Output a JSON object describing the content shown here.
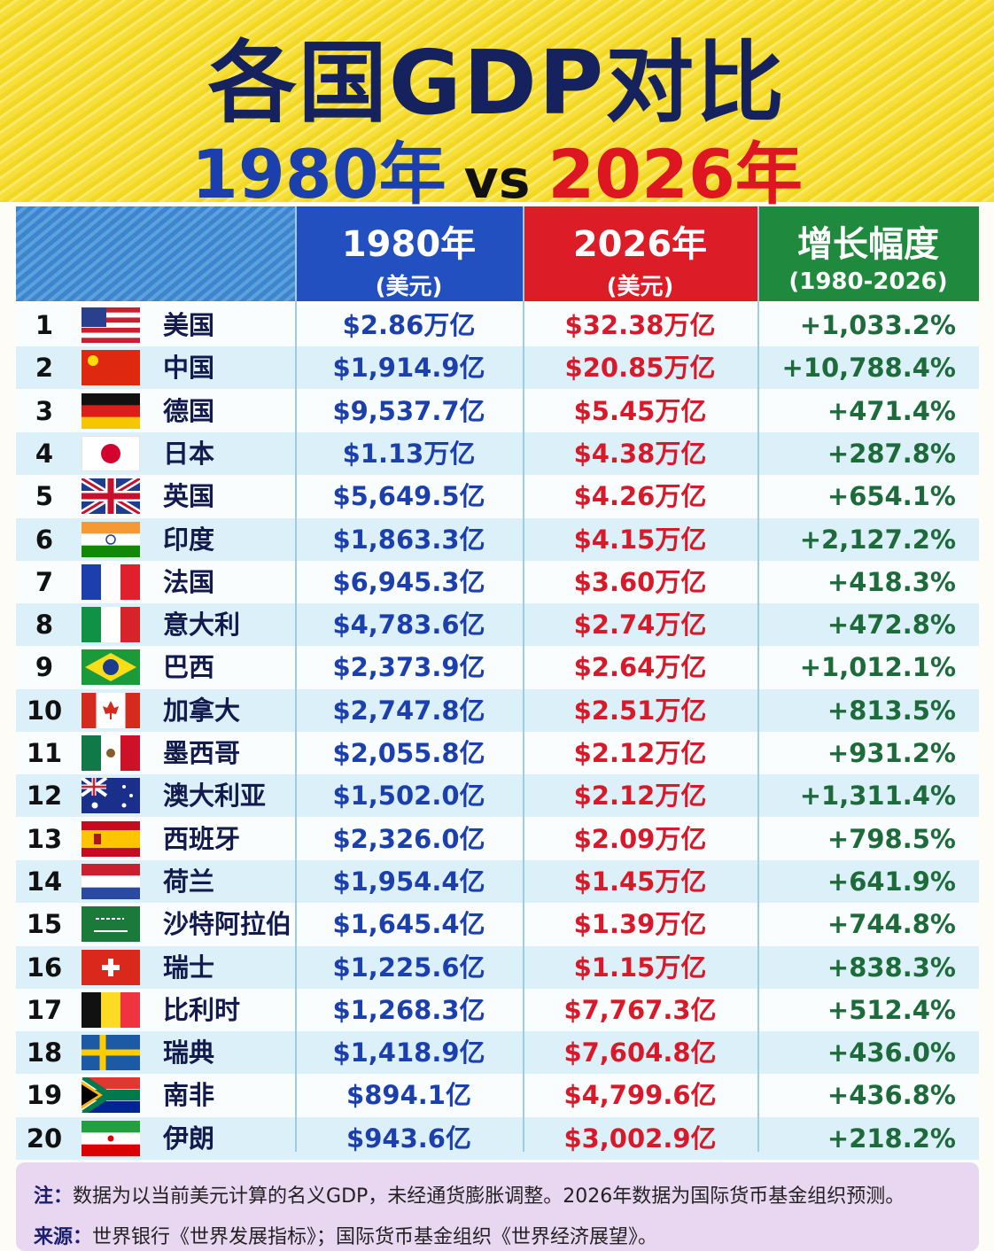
{
  "header": {
    "title": "各国GDP对比",
    "subtitle": [
      "1980年",
      "vs",
      "2026年"
    ]
  },
  "table": {
    "columns": [
      {
        "title": "1980年",
        "unit": "(美元)"
      },
      {
        "title": "2026年",
        "unit": "(美元)"
      },
      {
        "title": "增长幅度",
        "unit": "(1980-2026)"
      }
    ],
    "rows": [
      [
        1,
        "美国",
        "$2.86万亿",
        "$32.38万亿",
        "+1,033.2%"
      ],
      [
        2,
        "中国",
        "$1,914.9亿",
        "$20.85万亿",
        "+10,788.4%"
      ],
      [
        3,
        "德国",
        "$9,537.7亿",
        "$5.45万亿",
        "+471.4%"
      ],
      [
        4,
        "日本",
        "$1.13万亿",
        "$4.38万亿",
        "+287.8%"
      ],
      [
        5,
        "英国",
        "$5,649.5亿",
        "$4.26万亿",
        "+654.1%"
      ],
      [
        6,
        "印度",
        "$1,863.3亿",
        "$4.15万亿",
        "+2,127.2%"
      ],
      [
        7,
        "法国",
        "$6,945.3亿",
        "$3.60万亿",
        "+418.3%"
      ],
      [
        8,
        "意大利",
        "$4,783.6亿",
        "$2.74万亿",
        "+472.8%"
      ],
      [
        9,
        "巴西",
        "$2,373.9亿",
        "$2.64万亿",
        "+1,012.1%"
      ],
      [
        10,
        "加拿大",
        "$2,747.8亿",
        "$2.51万亿",
        "+813.5%"
      ],
      [
        11,
        "墨西哥",
        "$2,055.8亿",
        "$2.12万亿",
        "+931.2%"
      ],
      [
        12,
        "澳大利亚",
        "$1,502.0亿",
        "$2.12万亿",
        "+1,311.4%"
      ],
      [
        13,
        "西班牙",
        "$2,326.0亿",
        "$2.09万亿",
        "+798.5%"
      ],
      [
        14,
        "荷兰",
        "$1,954.4亿",
        "$1.45万亿",
        "+641.9%"
      ],
      [
        15,
        "沙特阿拉伯",
        "$1,645.4亿",
        "$1.39万亿",
        "+744.8%"
      ],
      [
        16,
        "瑞士",
        "$1,225.6亿",
        "$1.15万亿",
        "+838.3%"
      ],
      [
        17,
        "比利时",
        "$1,268.3亿",
        "$7,767.3亿",
        "+512.4%"
      ],
      [
        18,
        "瑞典",
        "$1,418.9亿",
        "$7,604.8亿",
        "+436.0%"
      ],
      [
        19,
        "南非",
        "$894.1亿",
        "$4,799.6亿",
        "+436.8%"
      ],
      [
        20,
        "伊朗",
        "$943.6亿",
        "$3,002.9亿",
        "+218.2%"
      ]
    ]
  },
  "footer": {
    "note": {
      "label": "注：",
      "text": "数据为以当前美元计算的名义GDP，未经通货膨胀调整。2026年数据为国际货币基金组织预测。"
    },
    "source": {
      "label": "来源：",
      "text": "世界银行《世界发展指标》；国际货币基金组织《世界经济展望》。"
    }
  }
}
